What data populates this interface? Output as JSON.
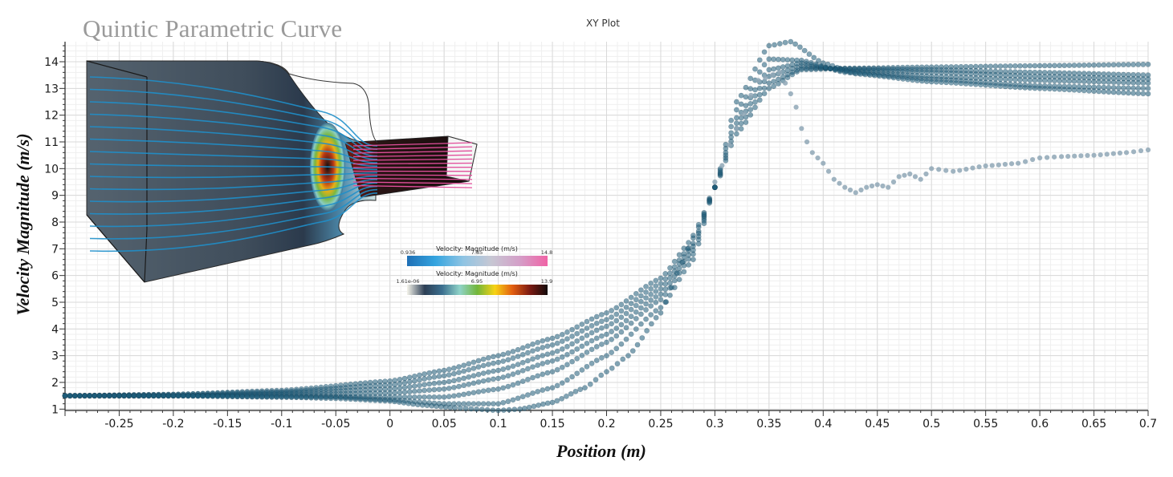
{
  "overlay_title": "Quintic Parametric Curve",
  "chart_data": {
    "type": "scatter",
    "title": "XY Plot",
    "xlabel": "Position (m)",
    "ylabel": "Velocity Magnitude (m/s)",
    "xlim": [
      -0.3,
      0.7
    ],
    "ylim": [
      0.95,
      14.75
    ],
    "grid": true,
    "x_ticks": [
      -0.25,
      -0.2,
      -0.15,
      -0.1,
      -0.05,
      0,
      0.05,
      0.1,
      0.15,
      0.2,
      0.25,
      0.3,
      0.35,
      0.4,
      0.45,
      0.5,
      0.55,
      0.6,
      0.65,
      0.7
    ],
    "x_tick_labels": [
      "-0.25",
      "-0.2",
      "-0.15",
      "-0.1",
      "-0.05",
      "0",
      "0.05",
      "0.1",
      "0.15",
      "0.2",
      "0.25",
      "0.3",
      "0.35",
      "0.4",
      "0.45",
      "0.5",
      "0.55",
      "0.6",
      "0.65",
      "0.7"
    ],
    "y_ticks": [
      1,
      2,
      3,
      4,
      5,
      6,
      7,
      8,
      9,
      10,
      11,
      12,
      13,
      14
    ],
    "y_tick_labels": [
      "1",
      "2",
      "3",
      "4",
      "5",
      "6",
      "7",
      "8",
      "9",
      "10",
      "11",
      "12",
      "13",
      "14"
    ],
    "marker_color": "#1d5b78",
    "outlier_color": "#8fa7b6",
    "series": [
      {
        "x": [
          -0.3,
          -0.2,
          -0.1,
          0,
          0.05,
          0.1,
          0.15,
          0.2,
          0.25,
          0.28,
          0.3,
          0.32,
          0.35,
          0.38,
          0.42,
          0.5,
          0.6,
          0.7
        ],
        "y": [
          1.5,
          1.55,
          1.7,
          2.05,
          2.45,
          3.0,
          3.65,
          4.6,
          5.9,
          7.4,
          9.3,
          11.3,
          13.0,
          13.7,
          13.75,
          13.8,
          13.85,
          13.9
        ]
      },
      {
        "x": [
          -0.3,
          -0.2,
          -0.1,
          0,
          0.05,
          0.1,
          0.15,
          0.2,
          0.25,
          0.28,
          0.3,
          0.32,
          0.35,
          0.38,
          0.42,
          0.5,
          0.6,
          0.7
        ],
        "y": [
          1.5,
          1.55,
          1.65,
          1.9,
          2.25,
          2.75,
          3.4,
          4.35,
          5.7,
          7.2,
          9.3,
          11.5,
          13.2,
          13.75,
          13.75,
          13.7,
          13.6,
          13.5
        ]
      },
      {
        "x": [
          -0.3,
          -0.2,
          -0.1,
          0,
          0.05,
          0.1,
          0.15,
          0.2,
          0.25,
          0.28,
          0.3,
          0.32,
          0.35,
          0.38,
          0.42,
          0.5,
          0.6,
          0.7
        ],
        "y": [
          1.5,
          1.5,
          1.6,
          1.75,
          2.0,
          2.45,
          3.1,
          4.1,
          5.5,
          7.1,
          9.3,
          11.7,
          13.45,
          13.85,
          13.7,
          13.6,
          13.45,
          13.35
        ]
      },
      {
        "x": [
          -0.3,
          -0.2,
          -0.1,
          0,
          0.05,
          0.1,
          0.15,
          0.2,
          0.25,
          0.28,
          0.3,
          0.32,
          0.35,
          0.38,
          0.42,
          0.5,
          0.6,
          0.7
        ],
        "y": [
          1.5,
          1.5,
          1.55,
          1.6,
          1.75,
          2.15,
          2.8,
          3.8,
          5.3,
          6.95,
          9.3,
          11.9,
          13.7,
          13.95,
          13.65,
          13.45,
          13.3,
          13.2
        ]
      },
      {
        "x": [
          -0.3,
          -0.2,
          -0.1,
          0,
          0.05,
          0.1,
          0.15,
          0.2,
          0.25,
          0.28,
          0.3,
          0.32,
          0.35,
          0.38,
          0.42,
          0.5,
          0.6,
          0.7
        ],
        "y": [
          1.5,
          1.5,
          1.5,
          1.45,
          1.45,
          1.75,
          2.4,
          3.5,
          5.1,
          6.8,
          9.3,
          12.2,
          14.1,
          14.05,
          13.6,
          13.35,
          13.1,
          13.0
        ]
      },
      {
        "x": [
          -0.3,
          -0.2,
          -0.1,
          -0.05,
          0,
          0.05,
          0.1,
          0.15,
          0.2,
          0.25,
          0.28,
          0.3,
          0.32,
          0.35,
          0.37,
          0.4,
          0.43,
          0.5,
          0.6,
          0.7
        ],
        "y": [
          1.5,
          1.5,
          1.45,
          1.45,
          1.35,
          1.2,
          1.2,
          1.8,
          3.0,
          4.8,
          6.6,
          9.3,
          12.5,
          14.6,
          14.75,
          13.95,
          13.55,
          13.25,
          13.0,
          12.8
        ]
      },
      {
        "x": [
          -0.3,
          -0.2,
          -0.1,
          -0.05,
          0,
          0.03,
          0.06,
          0.08,
          0.1,
          0.12,
          0.15,
          0.18,
          0.2,
          0.22,
          0.25,
          0.27,
          0.28,
          0.29
        ],
        "y": [
          1.5,
          1.5,
          1.45,
          1.4,
          1.3,
          1.15,
          1.05,
          1.0,
          0.95,
          1.0,
          1.25,
          1.8,
          2.4,
          3.0,
          4.6,
          6.5,
          7.5,
          8.3
        ]
      }
    ],
    "outlier_series": {
      "x": [
        0.3,
        0.32,
        0.34,
        0.36,
        0.37,
        0.375,
        0.38,
        0.385,
        0.39,
        0.4,
        0.41,
        0.42,
        0.43,
        0.44,
        0.45,
        0.46,
        0.47,
        0.48,
        0.49,
        0.5,
        0.52,
        0.55,
        0.58,
        0.6,
        0.62,
        0.65,
        0.68,
        0.7
      ],
      "y": [
        9.5,
        11.5,
        13.3,
        13.6,
        12.8,
        12.3,
        11.5,
        11.0,
        10.6,
        10.2,
        9.6,
        9.3,
        9.1,
        9.3,
        9.4,
        9.3,
        9.7,
        9.8,
        9.6,
        10.0,
        9.9,
        10.1,
        10.2,
        10.4,
        10.45,
        10.5,
        10.6,
        10.7
      ]
    }
  },
  "inset": {
    "legend_top": {
      "title": "Velocity: Magnitude (m/s)",
      "min": "0.936",
      "mid": "7.85",
      "max": "14.8",
      "colors": [
        "#1f6fb5",
        "#34a4df",
        "#8fc4e3",
        "#c7c7d3",
        "#d49fc8",
        "#f063a6"
      ]
    },
    "legend_bottom": {
      "title": "Velocity: Magnitude (m/s)",
      "min": "1.61e-06",
      "mid": "6.95",
      "max": "13.9",
      "colors": [
        "#f4f3ea",
        "#2c3e54",
        "#3b6f8f",
        "#8fd3c8",
        "#72b63a",
        "#f7d314",
        "#e25d10",
        "#7a1a12",
        "#120a0a"
      ]
    },
    "colors": {
      "body_dark": "#4a5966",
      "body_mid": "#6a7b88",
      "streamline_blue": "#1f8fca",
      "outlet_pink": "#e24f9c"
    }
  }
}
